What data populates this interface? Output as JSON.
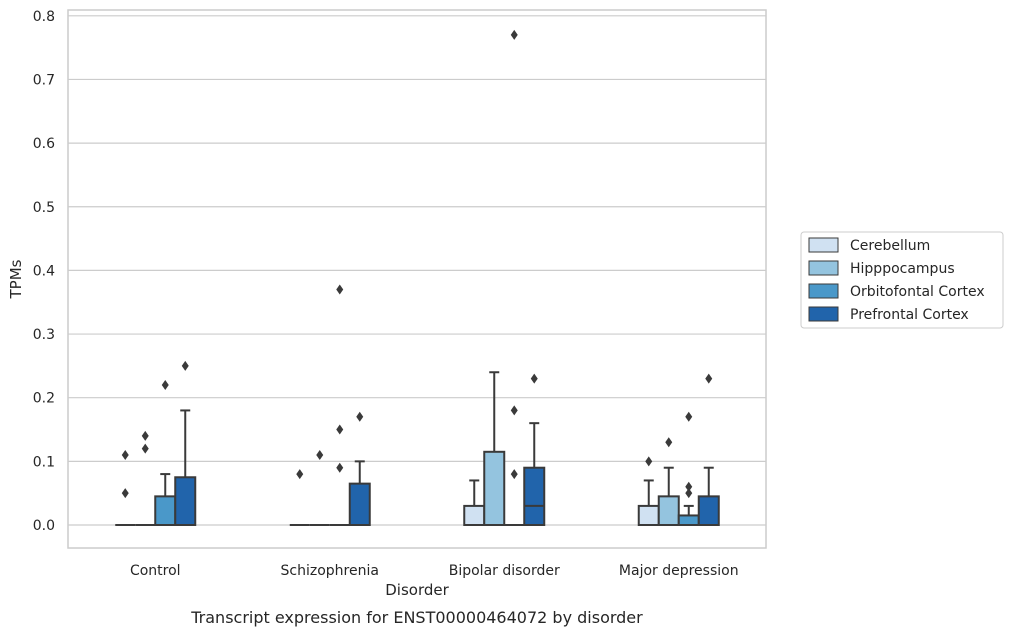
{
  "chart_data": {
    "type": "box",
    "title": "",
    "caption": "Transcript expression for ENST00000464072 by disorder",
    "xlabel": "Disorder",
    "ylabel": "TPMs",
    "ylim": [
      -0.037,
      0.812
    ],
    "yticks": [
      0.0,
      0.1,
      0.2,
      0.3,
      0.4,
      0.5,
      0.6,
      0.7,
      0.8
    ],
    "ytick_labels": [
      "0.0",
      "0.1",
      "0.2",
      "0.3",
      "0.4",
      "0.5",
      "0.6",
      "0.7",
      "0.8"
    ],
    "grid": "horizontal",
    "legend_position": "right",
    "categories": [
      "Control",
      "Schizophrenia",
      "Bipolar disorder",
      "Major depression"
    ],
    "series": [
      {
        "name": "Cerebellum",
        "color": "#d0e1f2",
        "boxes": [
          {
            "q1": 0,
            "median": 0,
            "q3": 0,
            "whisker_low": 0,
            "whisker_high": 0,
            "outliers": [
              0.05,
              0.11
            ]
          },
          {
            "q1": 0,
            "median": 0,
            "q3": 0,
            "whisker_low": 0,
            "whisker_high": 0,
            "outliers": [
              0.08
            ]
          },
          {
            "q1": 0,
            "median": 0,
            "q3": 0.03,
            "whisker_low": 0,
            "whisker_high": 0.07,
            "outliers": []
          },
          {
            "q1": 0,
            "median": 0,
            "q3": 0.03,
            "whisker_low": 0,
            "whisker_high": 0.07,
            "outliers": [
              0.1
            ]
          }
        ]
      },
      {
        "name": "Hipppocampus",
        "color": "#94c4df",
        "boxes": [
          {
            "q1": 0,
            "median": 0,
            "q3": 0,
            "whisker_low": 0,
            "whisker_high": 0,
            "outliers": [
              0.12,
              0.14
            ]
          },
          {
            "q1": 0,
            "median": 0,
            "q3": 0,
            "whisker_low": 0,
            "whisker_high": 0,
            "outliers": [
              0.11
            ]
          },
          {
            "q1": 0,
            "median": 0,
            "q3": 0.115,
            "whisker_low": 0,
            "whisker_high": 0.24,
            "outliers": []
          },
          {
            "q1": 0,
            "median": 0,
            "q3": 0.045,
            "whisker_low": 0,
            "whisker_high": 0.09,
            "outliers": [
              0.13
            ]
          }
        ]
      },
      {
        "name": "Orbitofontal Cortex",
        "color": "#4a98c9",
        "boxes": [
          {
            "q1": 0,
            "median": 0,
            "q3": 0.045,
            "whisker_low": 0,
            "whisker_high": 0.08,
            "outliers": [
              0.22
            ]
          },
          {
            "q1": 0,
            "median": 0,
            "q3": 0,
            "whisker_low": 0,
            "whisker_high": 0,
            "outliers": [
              0.09,
              0.15,
              0.37
            ]
          },
          {
            "q1": 0,
            "median": 0,
            "q3": 0,
            "whisker_low": 0,
            "whisker_high": 0,
            "outliers": [
              0.08,
              0.18,
              0.77
            ]
          },
          {
            "q1": 0,
            "median": 0,
            "q3": 0.015,
            "whisker_low": 0,
            "whisker_high": 0.03,
            "outliers": [
              0.05,
              0.06,
              0.17
            ]
          }
        ]
      },
      {
        "name": "Prefrontal Cortex",
        "color": "#2164ab",
        "boxes": [
          {
            "q1": 0,
            "median": 0,
            "q3": 0.075,
            "whisker_low": 0,
            "whisker_high": 0.18,
            "outliers": [
              0.25
            ]
          },
          {
            "q1": 0,
            "median": 0,
            "q3": 0.065,
            "whisker_low": 0,
            "whisker_high": 0.1,
            "outliers": [
              0.17
            ]
          },
          {
            "q1": 0,
            "median": 0.03,
            "q3": 0.09,
            "whisker_low": 0,
            "whisker_high": 0.16,
            "outliers": [
              0.23
            ]
          },
          {
            "q1": 0,
            "median": 0,
            "q3": 0.045,
            "whisker_low": 0,
            "whisker_high": 0.09,
            "outliers": [
              0.23
            ]
          }
        ]
      }
    ]
  }
}
